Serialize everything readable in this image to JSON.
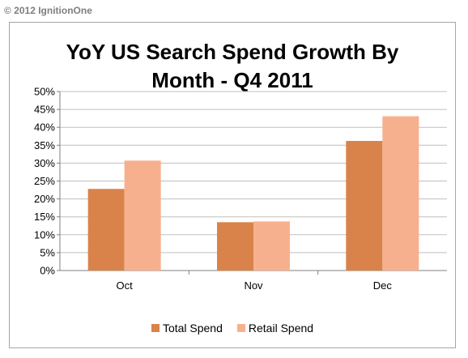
{
  "copyright": "© 2012 IgnitionOne",
  "chart_data": {
    "type": "bar",
    "title_lines": [
      "YoY US Search Spend Growth By",
      "Month - Q4 2011"
    ],
    "categories": [
      "Oct",
      "Nov",
      "Dec"
    ],
    "series": [
      {
        "name": "Total Spend",
        "values": [
          22.8,
          13.5,
          36.2
        ],
        "color": "#d9834a"
      },
      {
        "name": "Retail Spend",
        "values": [
          30.7,
          13.7,
          43.1
        ],
        "color": "#f7b08e"
      }
    ],
    "yticks": [
      "0%",
      "5%",
      "10%",
      "15%",
      "20%",
      "25%",
      "30%",
      "35%",
      "40%",
      "45%",
      "50%"
    ],
    "ylim": [
      0,
      50
    ],
    "grid": true,
    "legend_position": "bottom"
  }
}
